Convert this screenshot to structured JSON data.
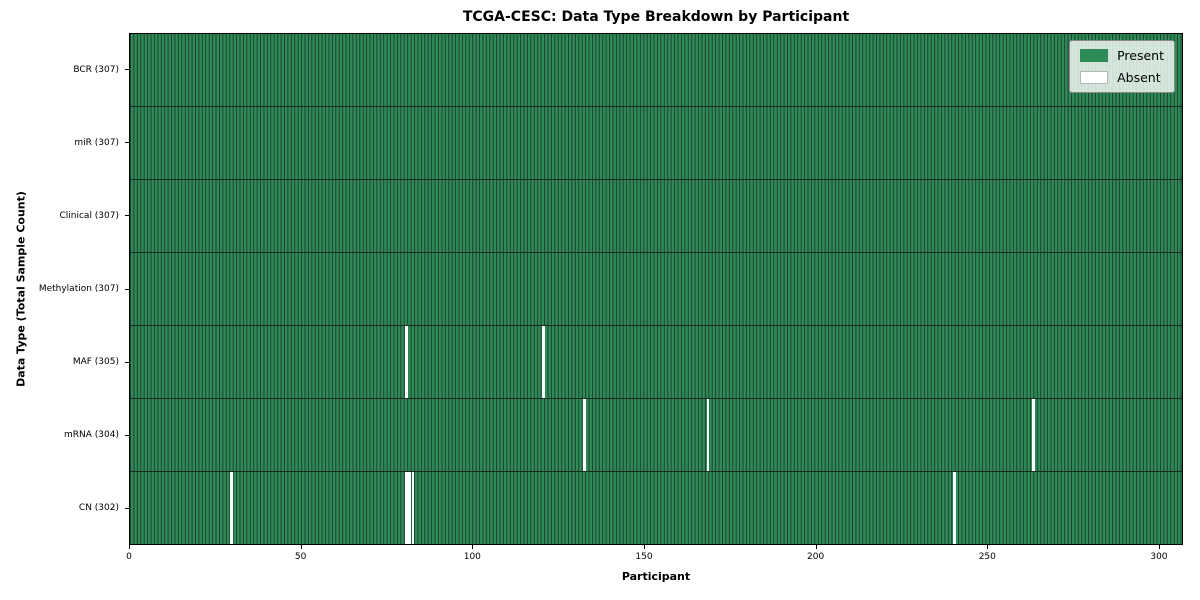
{
  "chart_data": {
    "type": "heatmap",
    "title": "TCGA-CESC: Data Type Breakdown by Participant",
    "xlabel": "Participant",
    "ylabel": "Data Type (Total Sample Count)",
    "n_participants": 307,
    "x_range": [
      0,
      307
    ],
    "x_ticks": [
      0,
      50,
      100,
      150,
      200,
      250,
      300
    ],
    "grid": false,
    "legend_position": "upper right",
    "legend": [
      {
        "label": "Present",
        "color": "#2e8b57"
      },
      {
        "label": "Absent",
        "color": "#ffffff"
      }
    ],
    "colors": {
      "present": "#2e8b57",
      "absent": "#ffffff",
      "cell_edge": "#1f4031",
      "row_divider": "#152b1f",
      "spine": "#000000"
    },
    "rows": [
      {
        "label": "BCR (307)",
        "data_type": "BCR",
        "present_count": 307,
        "absent_participants": []
      },
      {
        "label": "miR (307)",
        "data_type": "miR",
        "present_count": 307,
        "absent_participants": []
      },
      {
        "label": "Clinical (307)",
        "data_type": "Clinical",
        "present_count": 307,
        "absent_participants": []
      },
      {
        "label": "Methylation (307)",
        "data_type": "Methylation",
        "present_count": 307,
        "absent_participants": []
      },
      {
        "label": "MAF (305)",
        "data_type": "MAF",
        "present_count": 305,
        "absent_participants": [
          80,
          120
        ]
      },
      {
        "label": "mRNA (304)",
        "data_type": "mRNA",
        "present_count": 304,
        "absent_participants": [
          132,
          168,
          263
        ]
      },
      {
        "label": "CN (302)",
        "data_type": "CN",
        "present_count": 302,
        "absent_participants": [
          29,
          80,
          81,
          82,
          240
        ]
      }
    ]
  }
}
